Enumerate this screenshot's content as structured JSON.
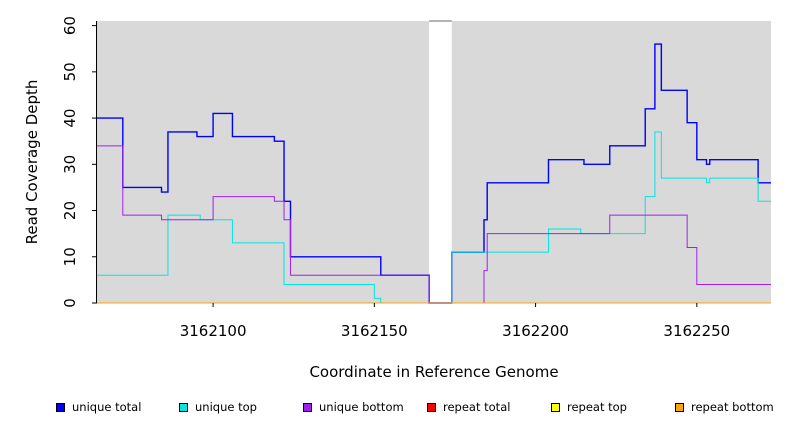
{
  "chart_data": {
    "type": "line",
    "title": "",
    "xlabel": "Coordinate in Reference Genome",
    "ylabel": "Read Coverage Depth",
    "xlim": [
      3162064,
      3162273
    ],
    "ylim": [
      0,
      61
    ],
    "x_ticks": [
      3162100,
      3162150,
      3162200,
      3162250
    ],
    "y_ticks": [
      0,
      10,
      20,
      30,
      40,
      50,
      60
    ],
    "background": "#d9d9d9",
    "gap": {
      "from": 3162167,
      "to": 3162174
    },
    "series": [
      {
        "name": "unique total",
        "color": "#0000ff",
        "points": [
          [
            3162064,
            40
          ],
          [
            3162072,
            40
          ],
          [
            3162072,
            25
          ],
          [
            3162084,
            25
          ],
          [
            3162084,
            24
          ],
          [
            3162086,
            24
          ],
          [
            3162086,
            37
          ],
          [
            3162095,
            37
          ],
          [
            3162095,
            36
          ],
          [
            3162100,
            36
          ],
          [
            3162100,
            41
          ],
          [
            3162106,
            41
          ],
          [
            3162106,
            36
          ],
          [
            3162119,
            36
          ],
          [
            3162119,
            35
          ],
          [
            3162122,
            35
          ],
          [
            3162122,
            22
          ],
          [
            3162124,
            22
          ],
          [
            3162124,
            10
          ],
          [
            3162152,
            10
          ],
          [
            3162152,
            6
          ],
          [
            3162167,
            6
          ],
          [
            3162167,
            0
          ],
          [
            3162174,
            0
          ],
          [
            3162174,
            11
          ],
          [
            3162184,
            11
          ],
          [
            3162184,
            18
          ],
          [
            3162185,
            18
          ],
          [
            3162185,
            26
          ],
          [
            3162204,
            26
          ],
          [
            3162204,
            31
          ],
          [
            3162215,
            31
          ],
          [
            3162215,
            30
          ],
          [
            3162223,
            30
          ],
          [
            3162223,
            34
          ],
          [
            3162234,
            34
          ],
          [
            3162234,
            42
          ],
          [
            3162237,
            42
          ],
          [
            3162237,
            56
          ],
          [
            3162239,
            56
          ],
          [
            3162239,
            46
          ],
          [
            3162247,
            46
          ],
          [
            3162247,
            39
          ],
          [
            3162250,
            39
          ],
          [
            3162250,
            31
          ],
          [
            3162253,
            31
          ],
          [
            3162253,
            30
          ],
          [
            3162254,
            30
          ],
          [
            3162254,
            31
          ],
          [
            3162269,
            31
          ],
          [
            3162269,
            26
          ],
          [
            3162273,
            26
          ]
        ]
      },
      {
        "name": "unique top",
        "color": "#00e5e5",
        "points": [
          [
            3162064,
            6
          ],
          [
            3162086,
            6
          ],
          [
            3162086,
            19
          ],
          [
            3162096,
            19
          ],
          [
            3162096,
            18
          ],
          [
            3162106,
            18
          ],
          [
            3162106,
            13
          ],
          [
            3162122,
            13
          ],
          [
            3162122,
            4
          ],
          [
            3162150,
            4
          ],
          [
            3162150,
            1
          ],
          [
            3162152,
            1
          ],
          [
            3162152,
            0
          ],
          [
            3162174,
            0
          ],
          [
            3162174,
            11
          ],
          [
            3162185,
            11
          ],
          [
            3162185,
            11
          ],
          [
            3162204,
            11
          ],
          [
            3162204,
            16
          ],
          [
            3162214,
            16
          ],
          [
            3162214,
            15
          ],
          [
            3162234,
            15
          ],
          [
            3162234,
            23
          ],
          [
            3162237,
            23
          ],
          [
            3162237,
            37
          ],
          [
            3162239,
            37
          ],
          [
            3162239,
            27
          ],
          [
            3162253,
            27
          ],
          [
            3162253,
            26
          ],
          [
            3162254,
            26
          ],
          [
            3162254,
            27
          ],
          [
            3162269,
            27
          ],
          [
            3162269,
            22
          ],
          [
            3162273,
            22
          ]
        ]
      },
      {
        "name": "unique bottom",
        "color": "#a020f0",
        "points": [
          [
            3162064,
            34
          ],
          [
            3162072,
            34
          ],
          [
            3162072,
            19
          ],
          [
            3162084,
            19
          ],
          [
            3162084,
            18
          ],
          [
            3162100,
            18
          ],
          [
            3162100,
            23
          ],
          [
            3162119,
            23
          ],
          [
            3162119,
            22
          ],
          [
            3162122,
            22
          ],
          [
            3162122,
            18
          ],
          [
            3162124,
            18
          ],
          [
            3162124,
            6
          ],
          [
            3162167,
            6
          ],
          [
            3162167,
            0
          ],
          [
            3162184,
            0
          ],
          [
            3162184,
            7
          ],
          [
            3162185,
            7
          ],
          [
            3162185,
            15
          ],
          [
            3162223,
            15
          ],
          [
            3162223,
            19
          ],
          [
            3162247,
            19
          ],
          [
            3162247,
            12
          ],
          [
            3162250,
            12
          ],
          [
            3162250,
            4
          ],
          [
            3162273,
            4
          ]
        ]
      },
      {
        "name": "repeat total",
        "color": "#ff0000",
        "points": [
          [
            3162064,
            0
          ],
          [
            3162273,
            0
          ]
        ]
      },
      {
        "name": "repeat top",
        "color": "#ffff00",
        "points": [
          [
            3162064,
            0
          ],
          [
            3162273,
            0
          ]
        ]
      },
      {
        "name": "repeat bottom",
        "color": "#ffa500",
        "points": [
          [
            3162064,
            0
          ],
          [
            3162273,
            0
          ]
        ]
      }
    ],
    "legend_position": "bottom"
  }
}
